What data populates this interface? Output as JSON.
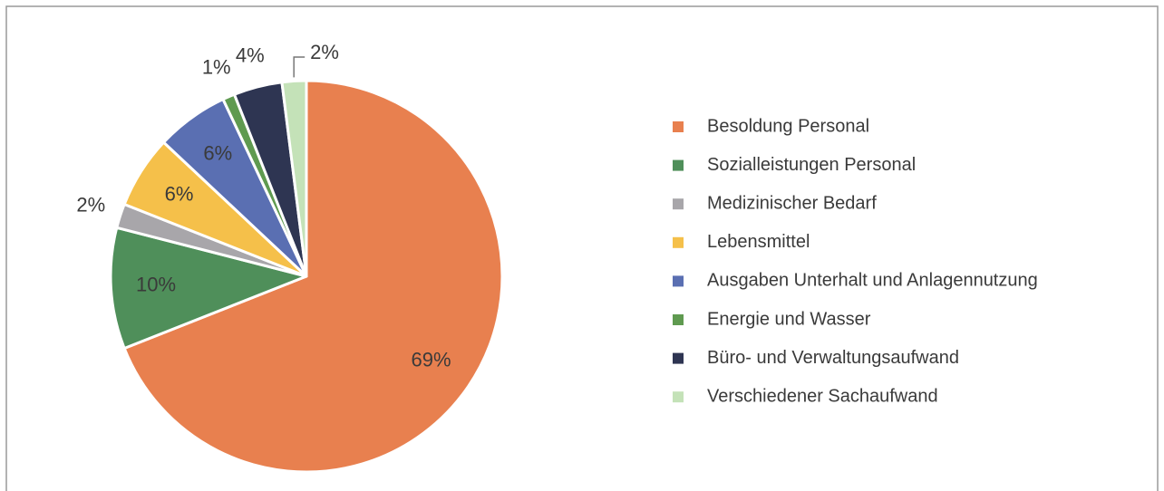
{
  "chart_data": {
    "type": "pie",
    "categories": [
      "Besoldung Personal",
      "Sozialleistungen Personal",
      "Medizinischer Bedarf",
      "Lebensmittel",
      "Ausgaben Unterhalt und Anlagennutzung",
      "Energie und Wasser",
      "Büro- und Verwaltungsaufwand",
      "Verschiedener Sachaufwand"
    ],
    "values": [
      69,
      10,
      2,
      6,
      6,
      1,
      4,
      2
    ],
    "value_labels": [
      "69%",
      "10%",
      "2%",
      "6%",
      "6%",
      "1%",
      "4%",
      "2%"
    ],
    "colors": [
      "#e8804f",
      "#4f8f5a",
      "#a8a6aa",
      "#f5c04a",
      "#5a6fb2",
      "#5f9a50",
      "#2e3552",
      "#c4e2b8"
    ]
  }
}
